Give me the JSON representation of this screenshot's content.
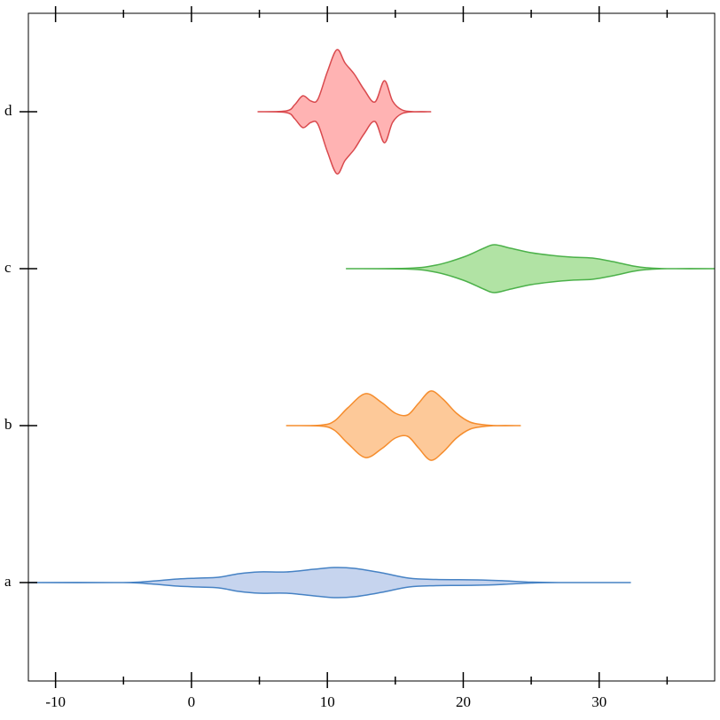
{
  "chart_data": {
    "type": "violin",
    "categories": [
      "a",
      "b",
      "c",
      "d"
    ],
    "xlim": [
      -12,
      38.5
    ],
    "xticks": [
      -10,
      0,
      10,
      20,
      30
    ],
    "xminor_ticks": [
      -5,
      5,
      15,
      25,
      35
    ],
    "series": [
      {
        "color": "#4682c4",
        "fill": "#c6d4ee",
        "x": [
          -12,
          -5,
          -3,
          -1,
          0.5,
          2,
          3.5,
          5,
          7,
          9,
          10.5,
          12,
          14,
          16,
          18,
          21,
          23,
          25,
          27,
          32.3
        ],
        "density": [
          0,
          0,
          1.5,
          4,
          5,
          6,
          10,
          12,
          12,
          15,
          17,
          16,
          11,
          5,
          3.5,
          3,
          2,
          0.5,
          0,
          0
        ]
      },
      {
        "color": "#f58d2e",
        "fill": "#fdc999",
        "x": [
          7.0,
          9.5,
          10.5,
          11.5,
          12.8,
          14.0,
          15.0,
          15.9,
          16.7,
          17.6,
          18.5,
          19.5,
          20.5,
          21.5,
          22.5,
          24.2
        ],
        "density": [
          0,
          0.5,
          5,
          20,
          36,
          26,
          14,
          12,
          25,
          39,
          30,
          14,
          4,
          1,
          0,
          0
        ]
      },
      {
        "color": "#4cb14a",
        "fill": "#b1e3a4",
        "x": [
          11.4,
          16.0,
          18.0,
          20.0,
          21.5,
          22.3,
          23.5,
          25.0,
          26.5,
          28.0,
          29.5,
          31.0,
          32.5,
          33.5,
          35,
          38.5
        ],
        "density": [
          0,
          0.5,
          4,
          13,
          23,
          27,
          23,
          18,
          15,
          13,
          12,
          8,
          3,
          1,
          0,
          0
        ]
      },
      {
        "color": "#d9494d",
        "fill": "#ffb3b3",
        "x": [
          4.9,
          7.0,
          7.6,
          8.2,
          8.8,
          9.3,
          10.0,
          10.7,
          11.3,
          12.0,
          12.7,
          13.5,
          14.2,
          14.8,
          15.5,
          16.5,
          17.6
        ],
        "density": [
          0,
          1,
          8,
          18,
          12,
          14,
          45,
          70,
          55,
          42,
          25,
          11,
          35,
          12,
          2,
          0,
          0
        ]
      }
    ]
  }
}
